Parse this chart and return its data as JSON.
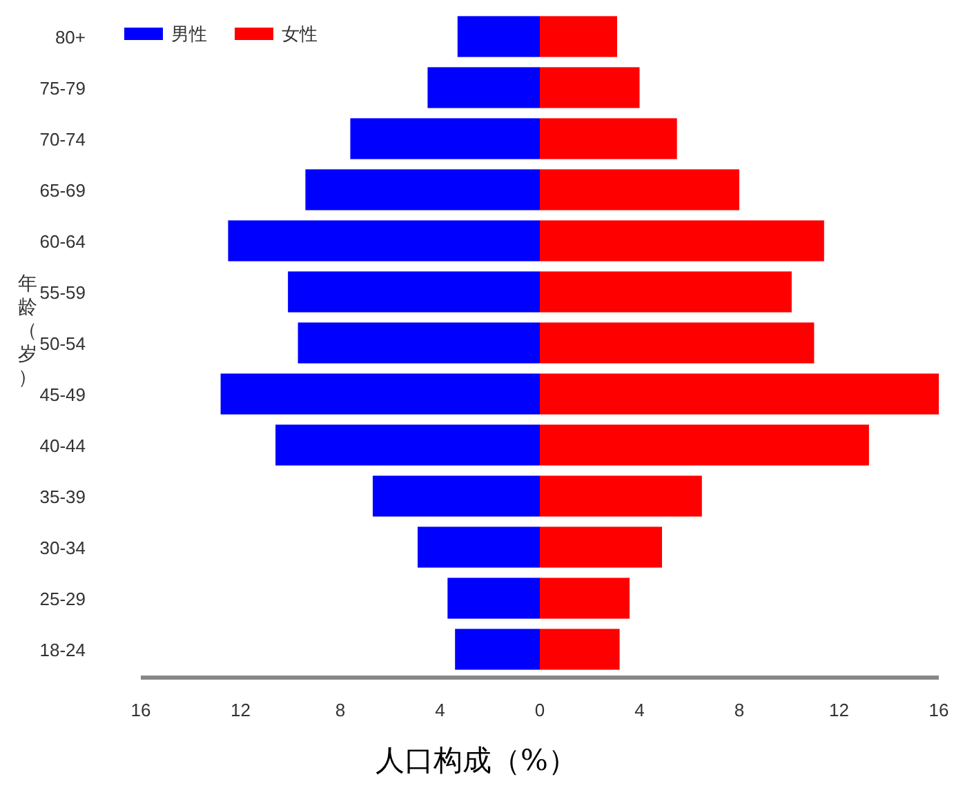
{
  "chart_data": {
    "type": "bar",
    "orientation": "horizontal",
    "xlabel": "人口构成（%）",
    "ylabel": "年龄（岁）",
    "categories": [
      "80+",
      "75-79",
      "70-74",
      "65-69",
      "60-64",
      "55-59",
      "50-54",
      "45-49",
      "40-44",
      "35-39",
      "30-34",
      "25-29",
      "18-24"
    ],
    "series": [
      {
        "name": "男性",
        "color": "#0000ff",
        "values": [
          -3.3,
          -4.5,
          -7.6,
          -9.4,
          -12.5,
          -10.1,
          -9.7,
          -12.8,
          -10.6,
          -6.7,
          -4.9,
          -3.7,
          -3.4
        ]
      },
      {
        "name": "女性",
        "color": "#ff0000",
        "values": [
          3.1,
          4.0,
          5.5,
          8.0,
          11.4,
          10.1,
          11.0,
          16.0,
          13.2,
          6.5,
          4.9,
          3.6,
          3.2
        ]
      }
    ],
    "xlim": [
      -16,
      16
    ],
    "xticks": [
      {
        "value": -16,
        "label": "16"
      },
      {
        "value": -12,
        "label": "12"
      },
      {
        "value": -8,
        "label": "8"
      },
      {
        "value": -4,
        "label": "4"
      },
      0,
      4,
      8,
      12,
      16
    ],
    "stacked": true,
    "legend": "top left",
    "grid": false
  }
}
